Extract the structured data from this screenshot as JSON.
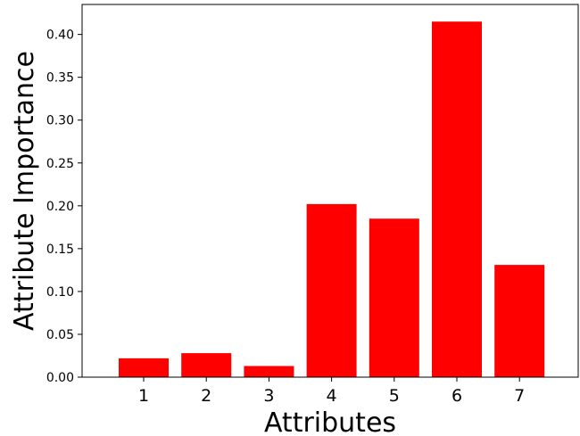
{
  "chart_data": {
    "type": "bar",
    "categories": [
      "1",
      "2",
      "3",
      "4",
      "5",
      "6",
      "7"
    ],
    "values": [
      0.022,
      0.028,
      0.013,
      0.202,
      0.185,
      0.415,
      0.131
    ],
    "title": "",
    "xlabel": "Attributes",
    "ylabel": "Attribute Importance",
    "ylim": [
      0,
      0.435
    ],
    "yticks": [
      "0.00",
      "0.05",
      "0.10",
      "0.15",
      "0.20",
      "0.25",
      "0.30",
      "0.35",
      "0.40"
    ],
    "bar_color": "#ff0000",
    "grid": false,
    "legend": "none"
  }
}
